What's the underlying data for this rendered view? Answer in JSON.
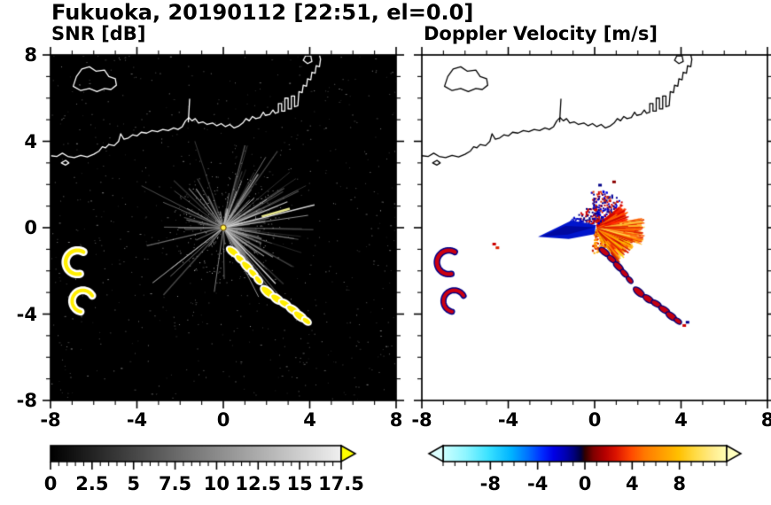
{
  "title": "Fukuoka, 20190112 [22:51, el=0.0]",
  "site": "Fukuoka",
  "date": "20190112",
  "time": "22:51",
  "elevation_deg": 0.0,
  "panels": [
    {
      "title": "SNR [dB]",
      "bg": "#000000",
      "coast": "#ffffff"
    },
    {
      "title": "Doppler Velocity [m/s]",
      "bg": "#ffffff",
      "coast": "#000000"
    }
  ],
  "axis": {
    "xlim": [
      -8,
      8
    ],
    "ylim": [
      -8,
      8
    ],
    "xticks": [
      -8,
      -4,
      0,
      4,
      8
    ],
    "yticks": [
      8,
      4,
      0,
      -4,
      -8
    ],
    "minor_step": 1
  },
  "colorbars": [
    {
      "label": "SNR [dB]",
      "min": 0,
      "max": 17.5,
      "minor_step": 0.5,
      "major_ticks": [
        0,
        2.5,
        5,
        7.5,
        10,
        12.5,
        15,
        17.5
      ],
      "tick_labels": [
        "0",
        "2.5",
        "5",
        "7.5",
        "10",
        "12.5",
        "15",
        "17.5"
      ],
      "over_arrow_color": "#ffff00",
      "stops": [
        [
          0,
          "#000000"
        ],
        [
          0.5,
          "#7a7a7a"
        ],
        [
          1,
          "#f0f0f0"
        ]
      ]
    },
    {
      "label": "Doppler Velocity [m/s]",
      "min": -12,
      "max": 12,
      "minor_step": 1,
      "major_ticks": [
        -8,
        -4,
        0,
        4,
        8
      ],
      "tick_labels": [
        "-8",
        "-4",
        "0",
        "4",
        "8"
      ],
      "under_arrow_color": "#dcffff",
      "over_arrow_color": "#ffffbe",
      "stops": [
        [
          0,
          "#ccffff"
        ],
        [
          0.08,
          "#8ef6ff"
        ],
        [
          0.16,
          "#3ae2ff"
        ],
        [
          0.24,
          "#00b4ff"
        ],
        [
          0.3,
          "#0070ff"
        ],
        [
          0.35,
          "#002aff"
        ],
        [
          0.39,
          "#0000e6"
        ],
        [
          0.43,
          "#0000b4"
        ],
        [
          0.46,
          "#000080"
        ],
        [
          0.485,
          "#000040"
        ],
        [
          0.5,
          "#300000"
        ],
        [
          0.53,
          "#800000"
        ],
        [
          0.57,
          "#b40000"
        ],
        [
          0.61,
          "#dc1400"
        ],
        [
          0.66,
          "#ff4600"
        ],
        [
          0.71,
          "#ff7800"
        ],
        [
          0.77,
          "#ff9c00"
        ],
        [
          0.83,
          "#ffc000"
        ],
        [
          0.89,
          "#ffdc46"
        ],
        [
          0.95,
          "#ffec8c"
        ],
        [
          1,
          "#ffffb4"
        ]
      ]
    }
  ],
  "chart_data": [
    {
      "type": "heatmap",
      "title": "SNR [dB]",
      "units": "dB",
      "xlim": [
        -8,
        8
      ],
      "ylim": [
        -8,
        8
      ],
      "xlabel": "",
      "ylabel": "",
      "colorbar_range": [
        0,
        17.5
      ],
      "colorbar_ticks": [
        0,
        2.5,
        5,
        7.5,
        10,
        12.5,
        15,
        17.5
      ],
      "background_value": "0 dB (black)",
      "radar_site": [
        0,
        0
      ],
      "notable_echoes": [
        {
          "kind": "radial clutter streaks from radar site",
          "center": [
            0,
            0
          ],
          "extent_radius": 4.5
        },
        {
          "kind": "strong echo arc, above 17.5 dB (yellow, white-rimmed)",
          "path": [
            [
              0.45,
              -1.1
            ],
            [
              3.85,
              -4.3
            ]
          ]
        },
        {
          "kind": "hook-shaped strong echo (yellow)",
          "center": [
            -6.75,
            -1.6
          ]
        },
        {
          "kind": "hook-shaped strong echo (yellow)",
          "center": [
            -6.5,
            -3.4
          ]
        }
      ]
    },
    {
      "type": "heatmap",
      "title": "Doppler Velocity [m/s]",
      "units": "m/s",
      "xlim": [
        -8,
        8
      ],
      "ylim": [
        -8,
        8
      ],
      "xlabel": "",
      "ylabel": "",
      "colorbar_range": [
        -12,
        12
      ],
      "colorbar_ticks": [
        -8,
        -4,
        0,
        4,
        8
      ],
      "background_value": "no data (white)",
      "radar_site": [
        0,
        0
      ],
      "notable_echoes": [
        {
          "kind": "outbound fan, positive velocity +2 to +9 m/s (red-orange-yellow)",
          "sector_deg": [
            -58,
            40
          ],
          "radius": 2.4
        },
        {
          "kind": "inbound wedge, negative velocity -4 to -8 m/s (blue)",
          "sector_deg": [
            168,
            190
          ],
          "radius": 2.6
        },
        {
          "kind": "mixed-sign speckle north of site",
          "sector_deg": [
            40,
            95
          ],
          "radius": 1.8
        },
        {
          "kind": "echo arc, mostly positive (red with blue specks)",
          "path": [
            [
              0.45,
              -1.1
            ],
            [
              3.85,
              -4.3
            ]
          ]
        },
        {
          "kind": "hook-shaped echo (red/navy)",
          "center": [
            -6.75,
            -1.6
          ]
        },
        {
          "kind": "hook-shaped echo (red/navy)",
          "center": [
            -6.5,
            -3.4
          ]
        }
      ]
    }
  ],
  "features": {
    "coastlines": [
      [
        [
          -8.15,
          3.35
        ],
        [
          -7.7,
          3.3
        ],
        [
          -7.45,
          3.45
        ],
        [
          -7.2,
          3.3
        ],
        [
          -6.9,
          3.25
        ],
        [
          -6.6,
          3.35
        ],
        [
          -6.3,
          3.28
        ],
        [
          -6.0,
          3.4
        ],
        [
          -5.75,
          3.55
        ],
        [
          -5.6,
          3.75
        ],
        [
          -5.45,
          3.7
        ],
        [
          -5.3,
          3.85
        ],
        [
          -5.05,
          3.8
        ],
        [
          -4.85,
          4.0
        ],
        [
          -4.75,
          4.35
        ],
        [
          -4.6,
          4.1
        ],
        [
          -4.4,
          4.15
        ],
        [
          -4.2,
          4.3
        ],
        [
          -4.0,
          4.25
        ],
        [
          -3.8,
          4.42
        ],
        [
          -3.55,
          4.38
        ],
        [
          -3.3,
          4.5
        ],
        [
          -3.05,
          4.45
        ],
        [
          -2.8,
          4.55
        ],
        [
          -2.55,
          4.5
        ],
        [
          -2.3,
          4.62
        ],
        [
          -2.1,
          4.55
        ],
        [
          -1.9,
          4.68
        ],
        [
          -1.75,
          4.95
        ],
        [
          -1.6,
          5.1
        ],
        [
          -1.45,
          4.95
        ],
        [
          -1.3,
          5.05
        ],
        [
          -1.15,
          4.85
        ],
        [
          -0.95,
          4.9
        ],
        [
          -0.75,
          4.78
        ],
        [
          -0.5,
          4.85
        ],
        [
          -0.3,
          4.72
        ],
        [
          -0.1,
          4.82
        ],
        [
          0.1,
          4.68
        ],
        [
          0.3,
          4.78
        ],
        [
          0.5,
          4.62
        ],
        [
          0.7,
          4.7
        ],
        [
          0.9,
          4.85
        ],
        [
          1.05,
          5.05
        ],
        [
          1.2,
          4.95
        ],
        [
          1.35,
          5.15
        ],
        [
          1.5,
          5.05
        ],
        [
          1.7,
          5.1
        ],
        [
          1.85,
          5.35
        ],
        [
          1.95,
          5.2
        ],
        [
          2.15,
          5.25
        ],
        [
          2.3,
          5.45
        ],
        [
          2.4,
          5.3
        ],
        [
          2.55,
          5.35
        ],
        [
          2.55,
          5.75
        ],
        [
          2.7,
          5.75
        ],
        [
          2.7,
          5.4
        ],
        [
          2.85,
          5.4
        ],
        [
          2.85,
          6.0
        ],
        [
          3.0,
          6.0
        ],
        [
          3.0,
          5.5
        ],
        [
          3.15,
          5.5
        ],
        [
          3.15,
          6.1
        ],
        [
          3.3,
          6.1
        ],
        [
          3.3,
          5.6
        ],
        [
          3.45,
          5.65
        ],
        [
          3.5,
          6.3
        ],
        [
          3.65,
          6.25
        ],
        [
          3.7,
          6.6
        ],
        [
          3.85,
          6.55
        ],
        [
          3.9,
          6.9
        ],
        [
          4.05,
          6.85
        ],
        [
          4.1,
          7.2
        ],
        [
          4.25,
          7.15
        ],
        [
          4.3,
          7.5
        ],
        [
          4.45,
          7.45
        ],
        [
          4.5,
          7.8
        ],
        [
          4.4,
          8.2
        ]
      ],
      [
        [
          -6.95,
          6.55
        ],
        [
          -6.6,
          6.35
        ],
        [
          -6.2,
          6.45
        ],
        [
          -5.85,
          6.3
        ],
        [
          -5.5,
          6.45
        ],
        [
          -5.2,
          6.4
        ],
        [
          -4.95,
          6.6
        ],
        [
          -5.0,
          6.9
        ],
        [
          -5.3,
          7.0
        ],
        [
          -5.5,
          7.3
        ],
        [
          -5.9,
          7.25
        ],
        [
          -6.2,
          7.45
        ],
        [
          -6.55,
          7.35
        ],
        [
          -6.8,
          7.0
        ],
        [
          -6.95,
          6.55
        ]
      ],
      [
        [
          3.7,
          7.75
        ],
        [
          3.9,
          7.6
        ],
        [
          4.1,
          7.7
        ],
        [
          4.05,
          7.95
        ],
        [
          3.8,
          7.95
        ],
        [
          3.7,
          7.75
        ]
      ],
      [
        [
          -7.5,
          3.0
        ],
        [
          -7.3,
          2.9
        ],
        [
          -7.15,
          3.0
        ],
        [
          -7.3,
          3.12
        ],
        [
          -7.5,
          3.0
        ]
      ],
      [
        [
          -1.62,
          4.9
        ],
        [
          -1.56,
          5.95
        ]
      ]
    ],
    "snr": {
      "speckle_count": 750,
      "random_rays": 150,
      "blocked_sectors": [
        [
          237,
          257
        ],
        [
          280,
          293
        ]
      ],
      "bright_rays": [
        {
          "deg": 16,
          "r0": 1.85,
          "len": 3.2,
          "w": 2.6,
          "color": "#e9e98e"
        },
        {
          "deg": 14,
          "r0": 0.15,
          "len": 4.35,
          "w": 1.5,
          "color": "#d5d5d5"
        },
        {
          "deg": 22,
          "r0": 0.15,
          "len": 3.2,
          "w": 1.2,
          "color": "#c4c4c4"
        },
        {
          "deg": 33,
          "r0": 0.15,
          "len": 2.4,
          "w": 1.0,
          "color": "#b0b0b0"
        },
        {
          "deg": 44,
          "r0": 0.15,
          "len": 2.0,
          "w": 1.0,
          "color": "#bdbdbd"
        },
        {
          "deg": 70,
          "r0": 0.15,
          "len": 1.8,
          "w": 1.0,
          "color": "#a8a8a8"
        },
        {
          "deg": -47,
          "r0": 0.15,
          "len": 3.55,
          "w": 1.4,
          "color": "#cccccc"
        },
        {
          "deg": -35,
          "r0": 0.15,
          "len": 2.3,
          "w": 1.1,
          "color": "#ababab"
        },
        {
          "deg": 125,
          "r0": 0.15,
          "len": 2.2,
          "w": 1.1,
          "color": "#9a9a9a"
        },
        {
          "deg": 152,
          "r0": 0.15,
          "len": 1.9,
          "w": 1.0,
          "color": "#8f8f8f"
        },
        {
          "deg": 180,
          "r0": 0.15,
          "len": 2.1,
          "w": 1.0,
          "color": "#909090"
        },
        {
          "deg": 218,
          "r0": 0.15,
          "len": 3.1,
          "w": 1.0,
          "color": "#b2b2b2"
        },
        {
          "deg": 262,
          "r0": 0.15,
          "len": 3.0,
          "w": 1.0,
          "color": "#7e7e7e"
        },
        {
          "deg": 297,
          "r0": 0.15,
          "len": 3.6,
          "w": 1.0,
          "color": "#8f8f8f"
        }
      ],
      "center_dot_color": "#ffee44"
    },
    "chain_blobs": [
      [
        0.45,
        -1.12,
        0.3,
        0.13,
        -38
      ],
      [
        0.78,
        -1.45,
        0.24,
        0.11,
        -40
      ],
      [
        1.1,
        -1.8,
        0.3,
        0.13,
        -44
      ],
      [
        1.38,
        -2.12,
        0.24,
        0.11,
        -46
      ],
      [
        1.62,
        -2.42,
        0.2,
        0.1,
        -50
      ],
      [
        2.05,
        -2.98,
        0.34,
        0.15,
        -40
      ],
      [
        2.48,
        -3.3,
        0.3,
        0.14,
        -34
      ],
      [
        2.85,
        -3.52,
        0.27,
        0.12,
        -30
      ],
      [
        3.22,
        -3.8,
        0.3,
        0.13,
        -32
      ],
      [
        3.55,
        -4.1,
        0.32,
        0.14,
        -36
      ],
      [
        3.85,
        -4.32,
        0.2,
        0.1,
        -36
      ]
    ],
    "hook_arcs": [
      [
        -6.75,
        -1.6,
        0.55,
        60,
        285,
        0.18
      ],
      [
        -6.5,
        -3.4,
        0.5,
        30,
        260,
        0.16
      ]
    ],
    "doppler": {
      "wedges": [
        {
          "a0": -58,
          "a1": -20,
          "r0": 0.12,
          "r1": 2.0,
          "base": "#ff7300",
          "colors": [
            "#ff3300",
            "#ff8800",
            "#ffaa00",
            "#cc1100",
            "#ffcc00"
          ],
          "n": 260
        },
        {
          "a0": -20,
          "a1": 12,
          "r0": 0.12,
          "r1": 2.35,
          "base": "#ff8400",
          "colors": [
            "#ff9900",
            "#ff5500",
            "#ffbb33",
            "#dd2200",
            "#ffdd55"
          ],
          "n": 300
        },
        {
          "a0": 12,
          "a1": 40,
          "r0": 0.12,
          "r1": 1.7,
          "base": "#ee3300",
          "colors": [
            "#cc0000",
            "#ff6600",
            "#ff2200"
          ],
          "n": 150
        },
        {
          "a0": 40,
          "a1": 95,
          "r0": 0.25,
          "r1": 1.75,
          "colors": [
            "#000099",
            "#0000dd",
            "#cc0000",
            "#330077",
            "#dd3300"
          ],
          "n": 230,
          "dots": true
        },
        {
          "a0": 95,
          "a1": 150,
          "r0": 0.2,
          "r1": 0.95,
          "colors": [
            "#cc0000",
            "#000088"
          ],
          "n": 45,
          "dots": true
        },
        {
          "a0": 150,
          "a1": 170,
          "r0": 0.2,
          "r1": 1.15,
          "colors": [
            "#0000bb",
            "#3344dd"
          ],
          "n": 60,
          "dots": true
        },
        {
          "a0": -95,
          "a1": -58,
          "r0": 0.2,
          "r1": 1.25,
          "colors": [
            "#ff7700",
            "#cc2200",
            "#ffaa00"
          ],
          "n": 80,
          "dots": true
        }
      ],
      "solid_polygons": [
        {
          "pts": [
            [
              0.05,
              0.12
            ],
            [
              -1.1,
              0.32
            ],
            [
              -2.62,
              -0.42
            ],
            [
              -1.2,
              -0.52
            ],
            [
              0.0,
              -0.3
            ]
          ],
          "color": "#0015cc"
        },
        {
          "pts": [
            [
              0.0,
              0.02
            ],
            [
              -1.35,
              0.08
            ],
            [
              -2.45,
              -0.4
            ],
            [
              -1.25,
              -0.32
            ]
          ],
          "color": "#0008a0"
        }
      ],
      "isolated_dots": [
        [
          -4.65,
          -0.78,
          "#cc0000"
        ],
        [
          -4.5,
          -0.95,
          "#dd2200"
        ],
        [
          0.25,
          1.95,
          "#000088"
        ],
        [
          0.9,
          2.1,
          "#8b0000"
        ],
        [
          4.15,
          -4.55,
          "#cc0000"
        ],
        [
          4.3,
          -4.4,
          "#000088"
        ]
      ]
    }
  }
}
